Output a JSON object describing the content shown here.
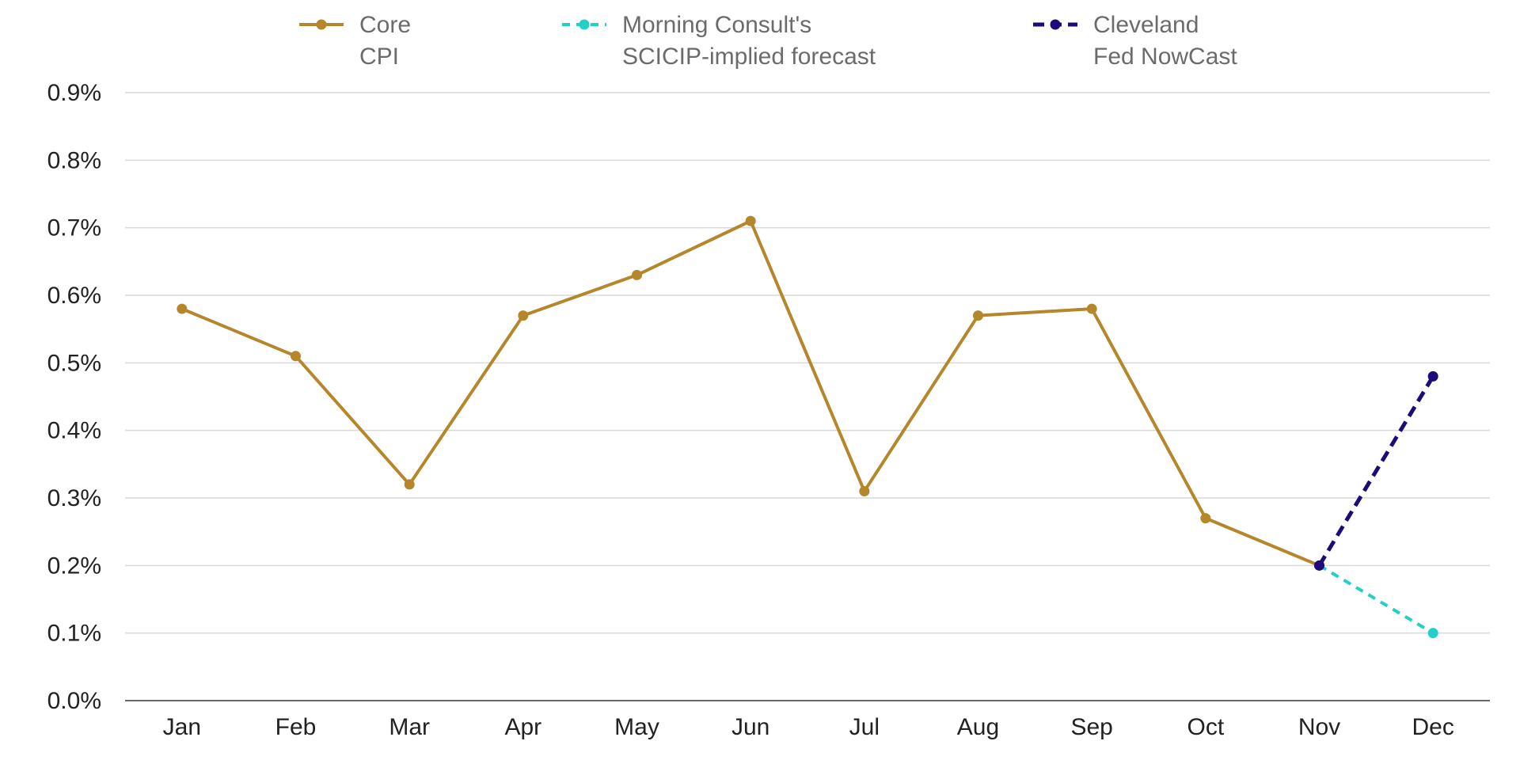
{
  "chart_data": {
    "type": "line",
    "categories": [
      "Jan",
      "Feb",
      "Mar",
      "Apr",
      "May",
      "Jun",
      "Jul",
      "Aug",
      "Sep",
      "Oct",
      "Nov",
      "Dec"
    ],
    "series": [
      {
        "name": "Core CPI",
        "legend_lines": [
          "Core",
          "CPI"
        ],
        "color": "#b5862a",
        "dashed": false,
        "x": [
          "Jan",
          "Feb",
          "Mar",
          "Apr",
          "May",
          "Jun",
          "Jul",
          "Aug",
          "Sep",
          "Oct",
          "Nov"
        ],
        "values": [
          0.58,
          0.51,
          0.32,
          0.57,
          0.63,
          0.71,
          0.31,
          0.57,
          0.58,
          0.27,
          0.2
        ]
      },
      {
        "name": "Morning Consult's SCICIP-implied forecast",
        "legend_lines": [
          "Morning Consult's",
          "SCICIP-implied forecast"
        ],
        "color": "#22d0c8",
        "dashed": true,
        "x": [
          "Nov",
          "Dec"
        ],
        "values": [
          0.2,
          0.1
        ]
      },
      {
        "name": "Cleveland Fed NowCast",
        "legend_lines": [
          "Cleveland",
          "Fed NowCast"
        ],
        "color": "#1f0a7a",
        "dashed": true,
        "x": [
          "Nov",
          "Dec"
        ],
        "values": [
          0.2,
          0.48
        ]
      }
    ],
    "y_ticks": [
      0.0,
      0.1,
      0.2,
      0.3,
      0.4,
      0.5,
      0.6,
      0.7,
      0.8,
      0.9
    ],
    "y_tick_labels": [
      "0.0%",
      "0.1%",
      "0.2%",
      "0.3%",
      "0.4%",
      "0.5%",
      "0.6%",
      "0.7%",
      "0.8%",
      "0.9%"
    ],
    "ylim": [
      0,
      0.9
    ],
    "grid": true,
    "legend_position": "top",
    "title": "",
    "xlabel": "",
    "ylabel": ""
  }
}
